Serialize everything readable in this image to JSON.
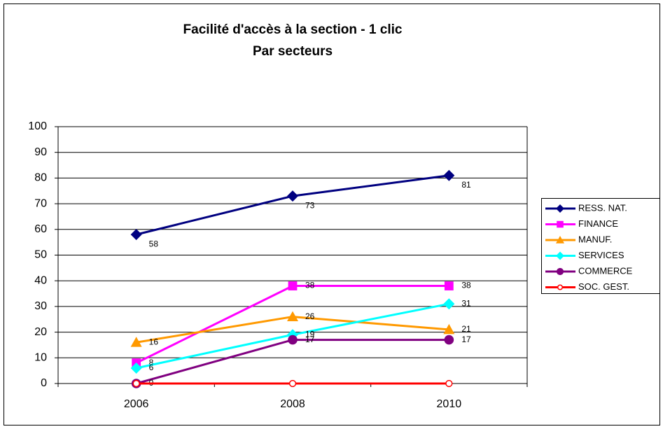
{
  "chart_data": {
    "type": "line",
    "title": "Facilité d'accès à la section - 1 clic",
    "subtitle": "Par secteurs",
    "categories": [
      "2006",
      "2008",
      "2010"
    ],
    "series": [
      {
        "name": "RESS. NAT.",
        "color": "#000080",
        "marker": "diamond",
        "values": [
          58,
          73,
          81
        ]
      },
      {
        "name": "FINANCE",
        "color": "#ff00ff",
        "marker": "square",
        "values": [
          8,
          38,
          38
        ]
      },
      {
        "name": "MANUF.",
        "color": "#ff9900",
        "marker": "triangle",
        "values": [
          16,
          26,
          21
        ]
      },
      {
        "name": "SERVICES",
        "color": "#00ffff",
        "marker": "diamond",
        "values": [
          6,
          19,
          31
        ]
      },
      {
        "name": "COMMERCE",
        "color": "#800080",
        "marker": "circle",
        "values": [
          0,
          17,
          17
        ]
      },
      {
        "name": "SOC. GEST.",
        "color": "#ff0000",
        "marker": "open-circle",
        "values": [
          0,
          0,
          0
        ],
        "data_labels": false
      }
    ],
    "ylim": [
      0,
      100
    ],
    "yticks": [
      0,
      10,
      20,
      30,
      40,
      50,
      60,
      70,
      80,
      90,
      100
    ],
    "grid": true,
    "legend": "right"
  }
}
